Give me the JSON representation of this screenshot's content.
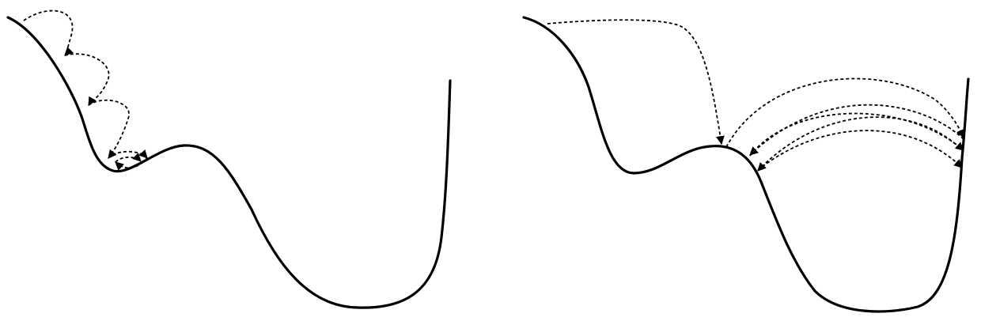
{
  "figure": {
    "background_color": "#ffffff",
    "stroke_color": "#000000",
    "line_style": "dashed",
    "arrowhead": "filled-triangle",
    "panels": [
      {
        "name": "small-step-descent",
        "hops": 6,
        "ends_in": "local-minimum"
      },
      {
        "name": "large-step-oscillation",
        "hops": 6,
        "ends_in": "oscillation-between-walls"
      }
    ]
  }
}
